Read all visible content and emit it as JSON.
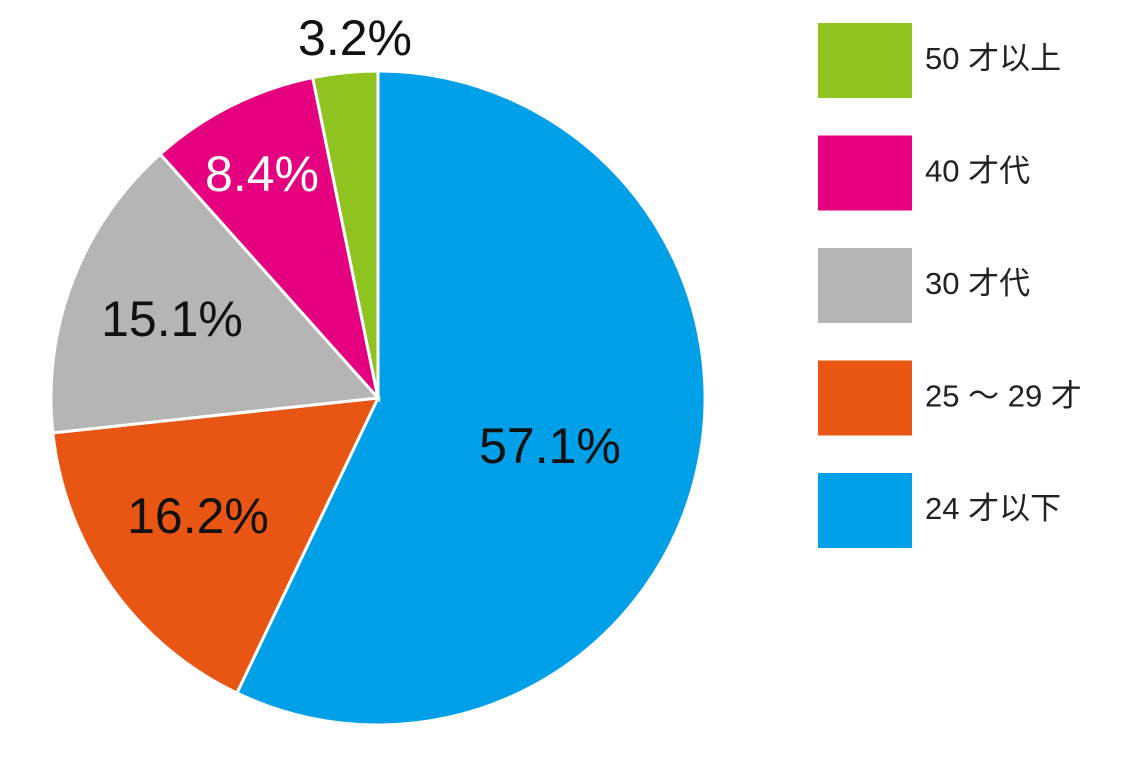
{
  "chart_data": {
    "type": "pie",
    "categories": [
      "24 才以下",
      "25 ～ 29 才",
      "30 才代",
      "40 才代",
      "50 才以上"
    ],
    "values": [
      57.1,
      16.2,
      15.1,
      8.4,
      3.2
    ],
    "value_labels": [
      "57.1%",
      "16.2%",
      "15.1%",
      "8.4%",
      "3.2%"
    ],
    "colors": [
      "#00a0e9",
      "#e95513",
      "#b5b5b6",
      "#e4007f",
      "#8fc31f"
    ],
    "legend": "right"
  }
}
